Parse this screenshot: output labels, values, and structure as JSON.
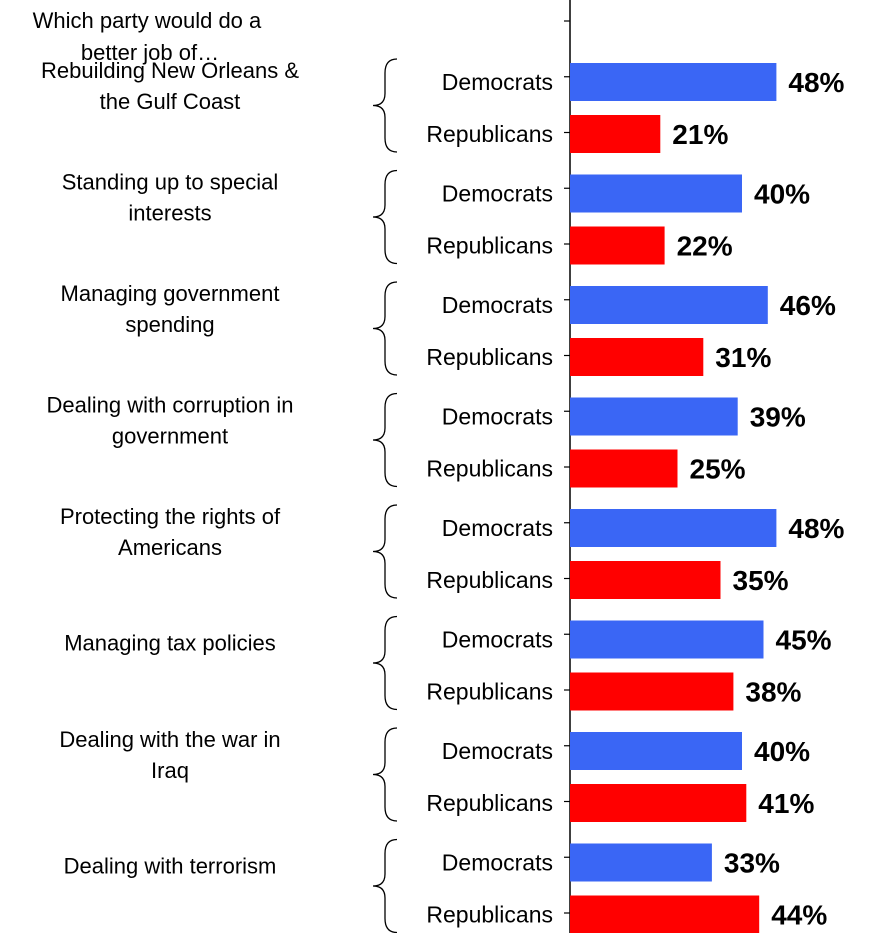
{
  "chart_data": {
    "type": "bar",
    "orientation": "horizontal",
    "title": "Which party would do a better job of…",
    "value_suffix": "%",
    "xlim": [
      0,
      55
    ],
    "grid": false,
    "legend": "none",
    "series_names": [
      "Democrats",
      "Republicans"
    ],
    "colors": {
      "Democrats": "#3a66f5",
      "Republicans": "#ff0000"
    },
    "groups": [
      {
        "label": "Rebuilding New Orleans & the Gulf Coast",
        "label_lines": [
          "Rebuilding New Orleans &",
          "the Gulf Coast"
        ],
        "values": [
          48,
          21
        ],
        "value_labels": [
          "48%",
          "21%"
        ]
      },
      {
        "label": "Standing up to special interests",
        "label_lines": [
          "Standing up to special",
          "interests"
        ],
        "values": [
          40,
          22
        ],
        "value_labels": [
          "40%",
          "22%"
        ]
      },
      {
        "label": "Managing government spending",
        "label_lines": [
          "Managing government",
          "spending"
        ],
        "values": [
          46,
          31
        ],
        "value_labels": [
          "46%",
          "31%"
        ]
      },
      {
        "label": "Dealing with corruption in government",
        "label_lines": [
          "Dealing with corruption in",
          "government"
        ],
        "values": [
          39,
          25
        ],
        "value_labels": [
          "39%",
          "25%"
        ]
      },
      {
        "label": "Protecting the rights of Americans",
        "label_lines": [
          "Protecting the rights of",
          "Americans"
        ],
        "values": [
          48,
          35
        ],
        "value_labels": [
          "48%",
          "35%"
        ]
      },
      {
        "label": "Managing tax policies",
        "label_lines": [
          "Managing tax policies"
        ],
        "values": [
          45,
          38
        ],
        "value_labels": [
          "45%",
          "38%"
        ]
      },
      {
        "label": "Dealing with the war in Iraq",
        "label_lines": [
          "Dealing with the war in",
          "Iraq"
        ],
        "values": [
          40,
          41
        ],
        "value_labels": [
          "40%",
          "41%"
        ]
      },
      {
        "label": "Dealing with terrorism",
        "label_lines": [
          "Dealing with terrorism"
        ],
        "values": [
          33,
          44
        ],
        "value_labels": [
          "33%",
          "44%"
        ]
      }
    ]
  }
}
